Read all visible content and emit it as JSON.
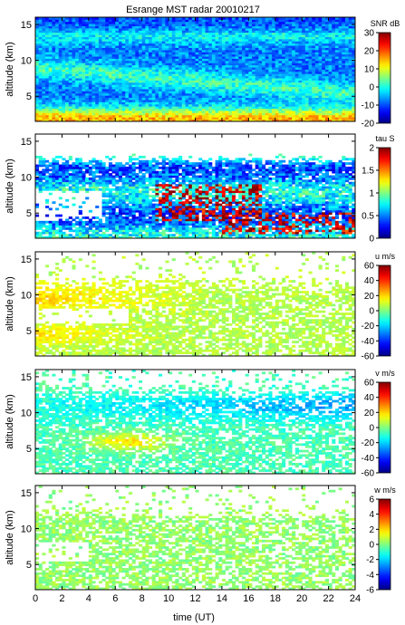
{
  "chart_data": {
    "type": "heatmap",
    "title": "Esrange MST radar 20010217",
    "xlabel": "time (UT)",
    "xlim": [
      0,
      24
    ],
    "xticks": [
      "0",
      "2",
      "4",
      "6",
      "8",
      "10",
      "12",
      "14",
      "16",
      "18",
      "20",
      "22",
      "24"
    ],
    "ylabel": "altitude (km)",
    "ylim": [
      1.5,
      16
    ],
    "yticks": [
      "5",
      "10",
      "15"
    ],
    "panels": [
      {
        "colorbar_label": "SNR dB",
        "range": [
          -20,
          30
        ],
        "ticks": [
          "30",
          "20",
          "10",
          "0",
          "-10",
          "-20"
        ],
        "description_values": {
          "low_altitude_snr": 25,
          "mid_altitude_snr": 10,
          "high_altitude_snr": -5
        }
      },
      {
        "colorbar_label": "tau S",
        "range": [
          0,
          2
        ],
        "ticks": [
          "2",
          "1.5",
          "1",
          "0.5",
          "0"
        ],
        "description_values": {
          "typical_tau": 0.8,
          "peak_tau": 2
        }
      },
      {
        "colorbar_label": "u m/s",
        "range": [
          -60,
          60
        ],
        "ticks": [
          "60",
          "40",
          "20",
          "0",
          "-20",
          "-40",
          "-60"
        ],
        "description_values": {
          "jet_peak_u": 30,
          "typical_u": 10
        }
      },
      {
        "colorbar_label": "v m/s",
        "range": [
          -60,
          60
        ],
        "ticks": [
          "60",
          "40",
          "20",
          "0",
          "-20",
          "-40",
          "-60"
        ],
        "description_values": {
          "low_level_v": 10,
          "upper_level_v": -20
        }
      },
      {
        "colorbar_label": "w m/s",
        "range": [
          -6,
          6
        ],
        "ticks": [
          "6",
          "4",
          "2",
          "0",
          "-2",
          "-4",
          "-6"
        ],
        "description_values": {
          "typical_w": 0
        }
      }
    ]
  }
}
